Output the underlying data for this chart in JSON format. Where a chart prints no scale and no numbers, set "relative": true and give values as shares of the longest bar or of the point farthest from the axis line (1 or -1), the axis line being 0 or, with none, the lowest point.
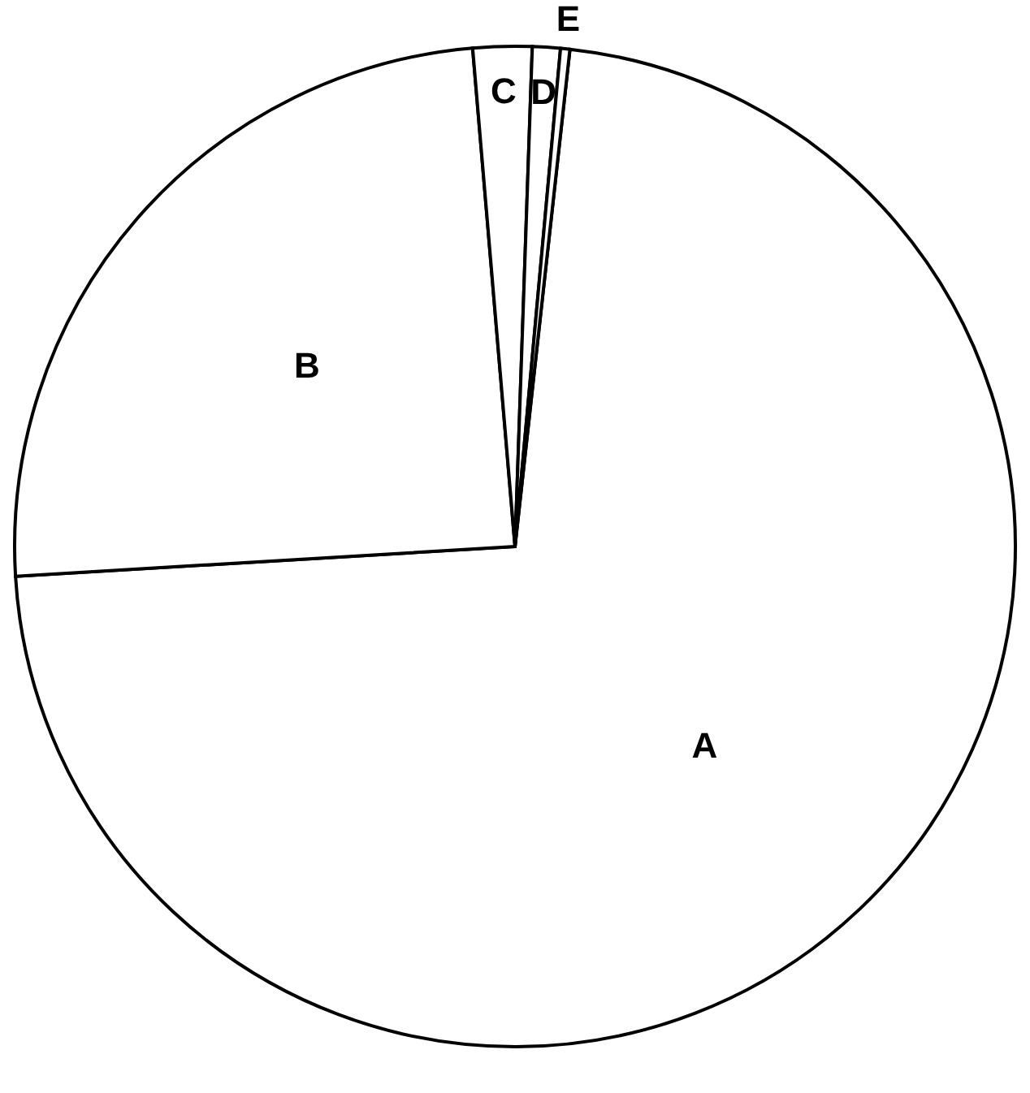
{
  "chart_data": {
    "type": "pie",
    "relative": true,
    "categories": [
      "A",
      "B",
      "C",
      "D",
      "E"
    ],
    "values": [
      72.3,
      24.6,
      1.9,
      0.9,
      0.3
    ],
    "colors": [
      "#ffffff",
      "#ffffff",
      "#ffffff",
      "#ffffff",
      "#ffffff"
    ],
    "legend": false
  }
}
